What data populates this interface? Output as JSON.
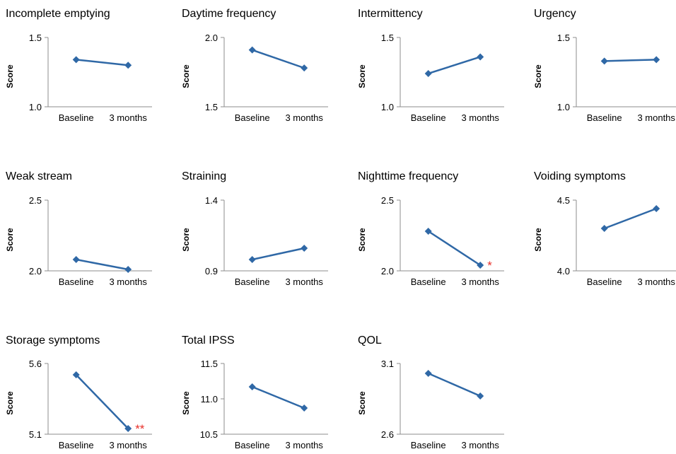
{
  "colors": {
    "line": "#2f68a6",
    "axis": "#8c8c8c",
    "star": "#e8302a",
    "text": "#000000"
  },
  "chart_data": [
    {
      "type": "line",
      "title": "Incomplete emptying",
      "ylabel": "Score",
      "categories": [
        "Baseline",
        "3 months"
      ],
      "values": [
        1.34,
        1.3
      ],
      "ylim": [
        1.0,
        1.5
      ],
      "yticks": [
        "1.5",
        "1.0"
      ],
      "annotation": ""
    },
    {
      "type": "line",
      "title": "Daytime frequency",
      "ylabel": "Score",
      "categories": [
        "Baseline",
        "3 months"
      ],
      "values": [
        1.91,
        1.78
      ],
      "ylim": [
        1.5,
        2.0
      ],
      "yticks": [
        "2.0",
        "1.5"
      ],
      "annotation": ""
    },
    {
      "type": "line",
      "title": "Intermittency",
      "ylabel": "Score",
      "categories": [
        "Baseline",
        "3 months"
      ],
      "values": [
        1.24,
        1.36
      ],
      "ylim": [
        1.0,
        1.5
      ],
      "yticks": [
        "1.5",
        "1.0"
      ],
      "annotation": ""
    },
    {
      "type": "line",
      "title": "Urgency",
      "ylabel": "Score",
      "categories": [
        "Baseline",
        "3 months"
      ],
      "values": [
        1.33,
        1.34
      ],
      "ylim": [
        1.0,
        1.5
      ],
      "yticks": [
        "1.5",
        "1.0"
      ],
      "annotation": ""
    },
    {
      "type": "line",
      "title": "Weak stream",
      "ylabel": "Score",
      "categories": [
        "Baseline",
        "3 months"
      ],
      "values": [
        2.08,
        2.01
      ],
      "ylim": [
        2.0,
        2.5
      ],
      "yticks": [
        "2.5",
        "2.0"
      ],
      "annotation": ""
    },
    {
      "type": "line",
      "title": "Straining",
      "ylabel": "Score",
      "categories": [
        "Baseline",
        "3 months"
      ],
      "values": [
        0.98,
        1.06
      ],
      "ylim": [
        0.9,
        1.4
      ],
      "yticks": [
        "1.4",
        "0.9"
      ],
      "annotation": ""
    },
    {
      "type": "line",
      "title": "Nighttime frequency",
      "ylabel": "Score",
      "categories": [
        "Baseline",
        "3 months"
      ],
      "values": [
        2.28,
        2.04
      ],
      "ylim": [
        2.0,
        2.5
      ],
      "yticks": [
        "2.5",
        "2.0"
      ],
      "annotation": "*"
    },
    {
      "type": "line",
      "title": "Voiding symptoms",
      "ylabel": "Score",
      "categories": [
        "Baseline",
        "3 months"
      ],
      "values": [
        4.3,
        4.44
      ],
      "ylim": [
        4.0,
        4.5
      ],
      "yticks": [
        "4.5",
        "4.0"
      ],
      "annotation": ""
    },
    {
      "type": "line",
      "title": "Storage symptoms",
      "ylabel": "Score",
      "categories": [
        "Baseline",
        "3 months"
      ],
      "values": [
        5.52,
        5.14
      ],
      "ylim": [
        5.1,
        5.6
      ],
      "yticks": [
        "5.6",
        "5.1"
      ],
      "annotation": "**"
    },
    {
      "type": "line",
      "title": "Total IPSS",
      "ylabel": "Score",
      "categories": [
        "Baseline",
        "3 months"
      ],
      "values": [
        11.17,
        10.87
      ],
      "ylim": [
        10.5,
        11.5
      ],
      "yticks": [
        "11.5",
        "11.0",
        "10.5"
      ],
      "annotation": ""
    },
    {
      "type": "line",
      "title": "QOL",
      "ylabel": "Score",
      "categories": [
        "Baseline",
        "3 months"
      ],
      "values": [
        3.03,
        2.87
      ],
      "ylim": [
        2.6,
        3.1
      ],
      "yticks": [
        "3.1",
        "2.6"
      ],
      "annotation": ""
    }
  ]
}
